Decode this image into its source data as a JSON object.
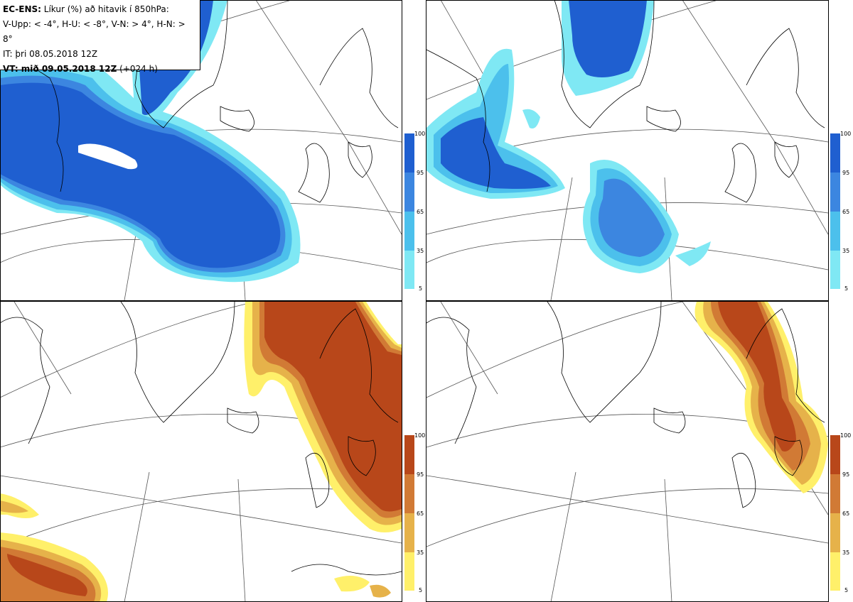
{
  "header": {
    "model": "EC-ENS:",
    "description": "Líkur (%) að hitavik í 850hPa:",
    "thresholds": "V-Upp: < -4°, H-U: < -8°, V-N: > 4°, H-N: > 8°",
    "initial_time": "IT: þri 08.05.2018 12Z",
    "valid_label": "VT: mið 09.05.2018 12Z",
    "valid_offset": "(+024 h)"
  },
  "colorbar": {
    "ticks": [
      "100",
      "95",
      "65",
      "35",
      "5"
    ],
    "cold_colors": [
      "#1f5fd0",
      "#3c86e0",
      "#4cc0ec",
      "#7fe8f4"
    ],
    "warm_colors": [
      "#b8471a",
      "#d17a35",
      "#e6b24a",
      "#fff06a"
    ]
  },
  "panels": [
    {
      "name": "V-Upp",
      "color": "cold"
    },
    {
      "name": "H-U",
      "color": "cold"
    },
    {
      "name": "V-N",
      "color": "warm"
    },
    {
      "name": "H-N",
      "color": "warm"
    }
  ]
}
